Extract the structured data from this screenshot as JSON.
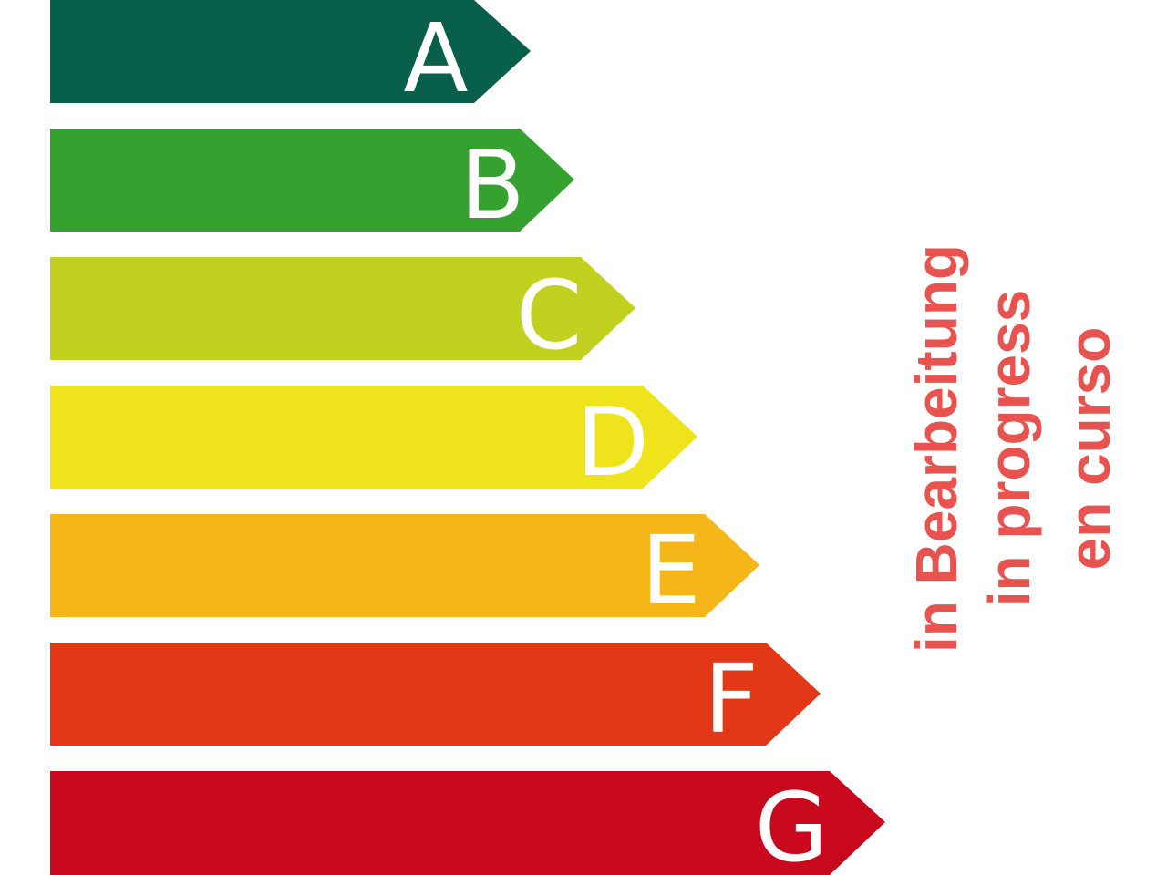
{
  "bands": [
    {
      "label": "A"
    },
    {
      "label": "B"
    },
    {
      "label": "C"
    },
    {
      "label": "D"
    },
    {
      "label": "E"
    },
    {
      "label": "F"
    },
    {
      "label": "G"
    }
  ],
  "status": [
    "in Bearbeitung",
    "in progress",
    "en curso"
  ]
}
